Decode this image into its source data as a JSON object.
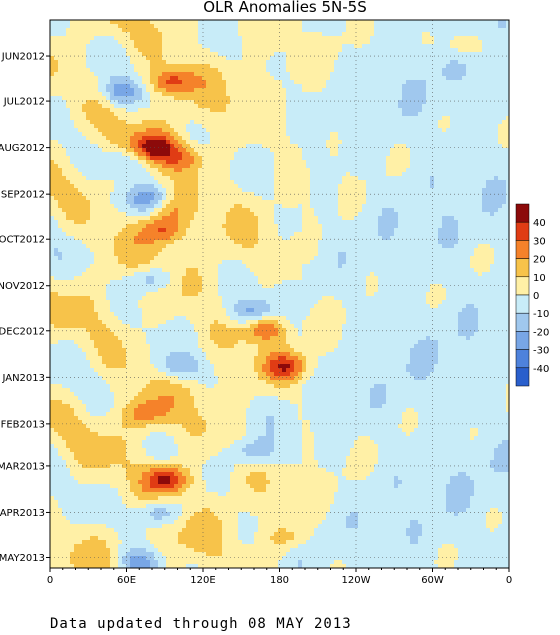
{
  "chart_data": {
    "type": "heatmap",
    "title": "OLR Anomalies 5N-5S",
    "xlabel": "",
    "ylabel": "",
    "x_tick_labels": [
      "0",
      "60E",
      "120E",
      "180",
      "120W",
      "60W",
      "0"
    ],
    "x_ticks_lon": [
      0,
      60,
      120,
      180,
      240,
      300,
      360
    ],
    "y_tick_labels": [
      "JUN2012",
      "JUL2012",
      "AUG2012",
      "SEP2012",
      "OCT2012",
      "NOV2012",
      "DEC2012",
      "JAN2013",
      "FEB2013",
      "MAR2013",
      "APR2013",
      "MAY2013"
    ],
    "y_range": [
      "2012-05-08",
      "2013-05-08"
    ],
    "x_range": [
      0,
      360
    ],
    "grid": true,
    "colorbar": {
      "labels": [
        "40",
        "30",
        "20",
        "10",
        "0",
        "-10",
        "-20",
        "-30",
        "-40"
      ],
      "levels": [
        50,
        40,
        30,
        20,
        10,
        0,
        -10,
        -20,
        -30,
        -40,
        -50
      ],
      "colors": [
        "#8c0a0a",
        "#e03c14",
        "#f5822a",
        "#f7c34a",
        "#fff0a6",
        "#c8ecf8",
        "#a0c8ee",
        "#78a6e6",
        "#4e82dc",
        "#2a5fcc"
      ]
    },
    "features": [
      {
        "lon": 95,
        "date": "2012-06-18",
        "value": 30
      },
      {
        "lon": 82,
        "date": "2012-08-01",
        "value": 35
      },
      {
        "lon": 105,
        "date": "2012-08-08",
        "value": 20
      },
      {
        "lon": 88,
        "date": "2012-09-25",
        "value": 30
      },
      {
        "lon": 92,
        "date": "2012-09-10",
        "value": 20
      },
      {
        "lon": 168,
        "date": "2012-11-28",
        "value": 35
      },
      {
        "lon": 185,
        "date": "2012-12-25",
        "value": 30
      },
      {
        "lon": 75,
        "date": "2013-01-25",
        "value": 20
      },
      {
        "lon": 92,
        "date": "2013-03-10",
        "value": 40
      },
      {
        "lon": 185,
        "date": "2013-04-18",
        "value": 15
      },
      {
        "lon": 325,
        "date": "2012-05-25",
        "value": 15
      },
      {
        "lon": 55,
        "date": "2012-06-25",
        "value": -25
      },
      {
        "lon": 60,
        "date": "2012-08-10",
        "value": -20
      },
      {
        "lon": 78,
        "date": "2012-09-05",
        "value": -25
      },
      {
        "lon": 80,
        "date": "2012-10-28",
        "value": -25
      },
      {
        "lon": 160,
        "date": "2012-11-20",
        "value": -30
      },
      {
        "lon": 100,
        "date": "2012-12-25",
        "value": -25
      },
      {
        "lon": 160,
        "date": "2013-02-20",
        "value": -20
      },
      {
        "lon": 85,
        "date": "2013-04-01",
        "value": -25
      },
      {
        "lon": 70,
        "date": "2013-05-05",
        "value": -30
      }
    ]
  },
  "footer": "Data updated through 08 MAY 2013"
}
